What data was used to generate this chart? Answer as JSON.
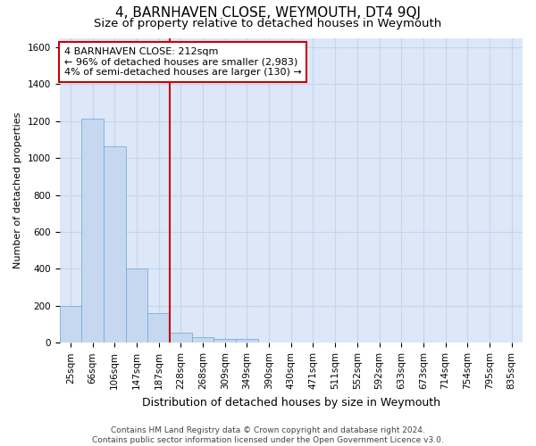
{
  "title": "4, BARNHAVEN CLOSE, WEYMOUTH, DT4 9QJ",
  "subtitle": "Size of property relative to detached houses in Weymouth",
  "xlabel": "Distribution of detached houses by size in Weymouth",
  "ylabel": "Number of detached properties",
  "categories": [
    "25sqm",
    "66sqm",
    "106sqm",
    "147sqm",
    "187sqm",
    "228sqm",
    "268sqm",
    "309sqm",
    "349sqm",
    "390sqm",
    "430sqm",
    "471sqm",
    "511sqm",
    "552sqm",
    "592sqm",
    "633sqm",
    "673sqm",
    "714sqm",
    "754sqm",
    "795sqm",
    "835sqm"
  ],
  "values": [
    200,
    1215,
    1065,
    400,
    160,
    55,
    30,
    20,
    20,
    0,
    0,
    0,
    0,
    0,
    0,
    0,
    0,
    0,
    0,
    0,
    0
  ],
  "bar_color": "#c5d8f0",
  "bar_edge_color": "#7aadda",
  "vline_x_index": 5,
  "vline_color": "#cc0000",
  "annotation_text": "4 BARNHAVEN CLOSE: 212sqm\n← 96% of detached houses are smaller (2,983)\n4% of semi-detached houses are larger (130) →",
  "annotation_box_color": "#ffffff",
  "annotation_box_edge": "#cc0000",
  "ylim": [
    0,
    1650
  ],
  "yticks": [
    0,
    200,
    400,
    600,
    800,
    1000,
    1200,
    1400,
    1600
  ],
  "grid_color": "#c8d4e8",
  "plot_bg_color": "#dce8f8",
  "footer": "Contains HM Land Registry data © Crown copyright and database right 2024.\nContains public sector information licensed under the Open Government Licence v3.0.",
  "title_fontsize": 11,
  "subtitle_fontsize": 9.5,
  "xlabel_fontsize": 9,
  "ylabel_fontsize": 8,
  "tick_fontsize": 7.5,
  "annotation_fontsize": 8,
  "footer_fontsize": 6.5
}
